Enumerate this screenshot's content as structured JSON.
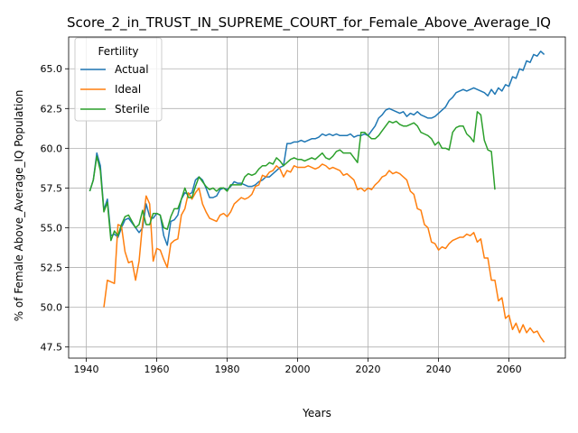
{
  "chart_data": {
    "type": "line",
    "title": "Score_2_in_TRUST_IN_SUPREME_COURT_for_Female_Above_Average_IQ",
    "xlabel": "Years",
    "ylabel": "% of Female Above_Average_IQ Population",
    "xlim": [
      1935,
      2076
    ],
    "ylim": [
      46.8,
      67.0
    ],
    "xticks": [
      1940,
      1960,
      1980,
      2000,
      2020,
      2040,
      2060
    ],
    "yticks": [
      47.5,
      50.0,
      52.5,
      55.0,
      57.5,
      60.0,
      62.5,
      65.0
    ],
    "grid": true,
    "legend": {
      "title": "Fertility",
      "placement": "top-left"
    },
    "colors": {
      "Actual": "#1f77b4",
      "Ideal": "#ff7f0e",
      "Sterile": "#2ca02c"
    },
    "series": [
      {
        "name": "Actual",
        "x": [
          1941,
          1942,
          1943,
          1944,
          1945,
          1946,
          1947,
          1948,
          1949,
          1950,
          1951,
          1952,
          1953,
          1954,
          1955,
          1956,
          1957,
          1958,
          1959,
          1960,
          1961,
          1962,
          1963,
          1964,
          1965,
          1966,
          1967,
          1968,
          1969,
          1970,
          1971,
          1972,
          1973,
          1974,
          1975,
          1976,
          1977,
          1978,
          1979,
          1980,
          1981,
          1982,
          1983,
          1984,
          1985,
          1986,
          1987,
          1988,
          1989,
          1990,
          1991,
          1992,
          1993,
          1994,
          1995,
          1996,
          1997,
          1998,
          1999,
          2000,
          2001,
          2002,
          2003,
          2004,
          2005,
          2006,
          2007,
          2008,
          2009,
          2010,
          2011,
          2012,
          2013,
          2014,
          2015,
          2016,
          2017,
          2018,
          2019,
          2020,
          2021,
          2022,
          2023,
          2024,
          2025,
          2026,
          2027,
          2028,
          2029,
          2030,
          2031,
          2032,
          2033,
          2034,
          2035,
          2036,
          2037,
          2038,
          2039,
          2040,
          2041,
          2042,
          2043,
          2044,
          2045,
          2046,
          2047,
          2048,
          2049,
          2050,
          2051,
          2052,
          2053,
          2054,
          2055,
          2056,
          2057,
          2058,
          2059,
          2060,
          2061,
          2062,
          2063,
          2064,
          2065,
          2066,
          2067,
          2068,
          2069,
          2070
        ],
        "values": [
          57.3,
          58.0,
          59.7,
          58.9,
          56.1,
          56.8,
          54.5,
          54.6,
          54.4,
          55.0,
          55.5,
          55.6,
          55.3,
          55.0,
          54.7,
          55.0,
          56.5,
          55.7,
          55.6,
          55.9,
          55.8,
          54.5,
          53.9,
          55.4,
          55.5,
          55.8,
          56.8,
          57.2,
          57.1,
          57.2,
          58.0,
          58.2,
          58.0,
          57.5,
          56.9,
          56.9,
          57.0,
          57.4,
          57.5,
          57.4,
          57.6,
          57.9,
          57.8,
          57.8,
          57.7,
          57.6,
          57.6,
          57.7,
          57.9,
          58.0,
          58.2,
          58.2,
          58.4,
          58.6,
          58.8,
          58.9,
          60.3,
          60.3,
          60.4,
          60.4,
          60.5,
          60.4,
          60.5,
          60.6,
          60.6,
          60.7,
          60.9,
          60.8,
          60.9,
          60.8,
          60.9,
          60.8,
          60.8,
          60.8,
          60.9,
          60.7,
          60.8,
          60.8,
          60.9,
          60.8,
          61.1,
          61.4,
          61.9,
          62.1,
          62.4,
          62.5,
          62.4,
          62.3,
          62.2,
          62.3,
          62.0,
          62.2,
          62.1,
          62.3,
          62.1,
          62.0,
          61.9,
          61.9,
          62.0,
          62.2,
          62.4,
          62.6,
          63.0,
          63.2,
          63.5,
          63.6,
          63.7,
          63.6,
          63.7,
          63.8,
          63.7,
          63.6,
          63.5,
          63.3,
          63.7,
          63.4,
          63.8,
          63.6,
          64.0,
          63.9,
          64.5,
          64.4,
          65.0,
          64.9,
          65.5,
          65.4,
          65.9,
          65.8,
          66.1,
          65.9
        ]
      },
      {
        "name": "Ideal",
        "x": [
          1945,
          1946,
          1947,
          1948,
          1949,
          1950,
          1951,
          1952,
          1953,
          1954,
          1955,
          1956,
          1957,
          1958,
          1959,
          1960,
          1961,
          1962,
          1963,
          1964,
          1965,
          1966,
          1967,
          1968,
          1969,
          1970,
          1971,
          1972,
          1973,
          1974,
          1975,
          1976,
          1977,
          1978,
          1979,
          1980,
          1981,
          1982,
          1983,
          1984,
          1985,
          1986,
          1987,
          1988,
          1989,
          1990,
          1991,
          1992,
          1993,
          1994,
          1995,
          1996,
          1997,
          1998,
          1999,
          2000,
          2001,
          2002,
          2003,
          2004,
          2005,
          2006,
          2007,
          2008,
          2009,
          2010,
          2011,
          2012,
          2013,
          2014,
          2015,
          2016,
          2017,
          2018,
          2019,
          2020,
          2021,
          2022,
          2023,
          2024,
          2025,
          2026,
          2027,
          2028,
          2029,
          2030,
          2031,
          2032,
          2033,
          2034,
          2035,
          2036,
          2037,
          2038,
          2039,
          2040,
          2041,
          2042,
          2043,
          2044,
          2045,
          2046,
          2047,
          2048,
          2049,
          2050,
          2051,
          2052,
          2053,
          2054,
          2055,
          2056,
          2057,
          2058,
          2059,
          2060,
          2061,
          2062,
          2063,
          2064,
          2065,
          2066,
          2067,
          2068,
          2069,
          2070
        ],
        "values": [
          50.0,
          51.7,
          51.6,
          51.5,
          55.2,
          55.1,
          53.5,
          52.8,
          52.9,
          51.7,
          52.9,
          55.3,
          57.0,
          56.5,
          52.9,
          53.7,
          53.6,
          53.0,
          52.5,
          54.0,
          54.2,
          54.3,
          55.8,
          56.2,
          57.2,
          56.8,
          57.2,
          57.5,
          56.5,
          56.0,
          55.6,
          55.5,
          55.4,
          55.8,
          55.9,
          55.7,
          56.0,
          56.5,
          56.7,
          56.9,
          56.8,
          56.9,
          57.1,
          57.6,
          57.7,
          58.3,
          58.2,
          58.5,
          58.6,
          58.9,
          58.7,
          58.2,
          58.6,
          58.5,
          58.9,
          58.8,
          58.8,
          58.8,
          58.9,
          58.8,
          58.7,
          58.8,
          59.0,
          58.9,
          58.7,
          58.8,
          58.7,
          58.6,
          58.3,
          58.4,
          58.2,
          58.0,
          57.4,
          57.5,
          57.3,
          57.5,
          57.4,
          57.7,
          57.9,
          58.2,
          58.3,
          58.6,
          58.4,
          58.5,
          58.4,
          58.2,
          58.0,
          57.3,
          57.1,
          56.2,
          56.1,
          55.2,
          55.0,
          54.1,
          54.0,
          53.6,
          53.8,
          53.7,
          54.0,
          54.2,
          54.3,
          54.4,
          54.4,
          54.6,
          54.5,
          54.7,
          54.1,
          54.3,
          53.1,
          53.1,
          51.7,
          51.7,
          50.4,
          50.6,
          49.3,
          49.5,
          48.6,
          49.0,
          48.4,
          48.9,
          48.4,
          48.7,
          48.4,
          48.5,
          48.1,
          47.8
        ]
      },
      {
        "name": "Sterile",
        "x": [
          1941,
          1942,
          1943,
          1944,
          1945,
          1946,
          1947,
          1948,
          1949,
          1950,
          1951,
          1952,
          1953,
          1954,
          1955,
          1956,
          1957,
          1958,
          1959,
          1960,
          1961,
          1962,
          1963,
          1964,
          1965,
          1966,
          1967,
          1968,
          1969,
          1970,
          1971,
          1972,
          1973,
          1974,
          1975,
          1976,
          1977,
          1978,
          1979,
          1980,
          1981,
          1982,
          1983,
          1984,
          1985,
          1986,
          1987,
          1988,
          1989,
          1990,
          1991,
          1992,
          1993,
          1994,
          1995,
          1996,
          1997,
          1998,
          1999,
          2000,
          2001,
          2002,
          2003,
          2004,
          2005,
          2006,
          2007,
          2008,
          2009,
          2010,
          2011,
          2012,
          2013,
          2014,
          2015,
          2016,
          2017,
          2018,
          2019,
          2020,
          2021,
          2022,
          2023,
          2024,
          2025,
          2026,
          2027,
          2028,
          2029,
          2030,
          2031,
          2032,
          2033,
          2034,
          2035,
          2036,
          2037,
          2038,
          2039,
          2040,
          2041,
          2042,
          2043,
          2044,
          2045,
          2046,
          2047,
          2048,
          2049,
          2050,
          2051,
          2052,
          2053,
          2054,
          2055,
          2056
        ],
        "values": [
          57.3,
          58.0,
          59.5,
          58.6,
          56.0,
          56.6,
          54.2,
          54.8,
          54.5,
          55.2,
          55.7,
          55.8,
          55.4,
          55.0,
          55.2,
          56.1,
          55.2,
          55.2,
          55.9,
          55.9,
          55.8,
          55.0,
          54.9,
          55.7,
          56.2,
          56.2,
          56.8,
          57.5,
          56.9,
          56.9,
          57.6,
          58.2,
          57.9,
          57.6,
          57.4,
          57.5,
          57.3,
          57.5,
          57.5,
          57.3,
          57.7,
          57.7,
          57.7,
          57.7,
          58.2,
          58.4,
          58.3,
          58.4,
          58.7,
          58.9,
          58.9,
          59.1,
          59.0,
          59.4,
          59.2,
          58.9,
          59.1,
          59.3,
          59.4,
          59.3,
          59.3,
          59.2,
          59.3,
          59.4,
          59.3,
          59.5,
          59.7,
          59.4,
          59.3,
          59.5,
          59.8,
          59.9,
          59.7,
          59.7,
          59.7,
          59.4,
          59.1,
          61.0,
          61.0,
          60.8,
          60.6,
          60.6,
          60.8,
          61.1,
          61.4,
          61.7,
          61.6,
          61.7,
          61.5,
          61.4,
          61.4,
          61.5,
          61.6,
          61.4,
          61.0,
          60.9,
          60.8,
          60.6,
          60.2,
          60.4,
          60.0,
          60.0,
          59.9,
          61.0,
          61.3,
          61.4,
          61.4,
          60.9,
          60.7,
          60.4,
          62.3,
          62.1,
          60.5,
          59.9,
          59.8,
          57.4
        ]
      }
    ]
  }
}
